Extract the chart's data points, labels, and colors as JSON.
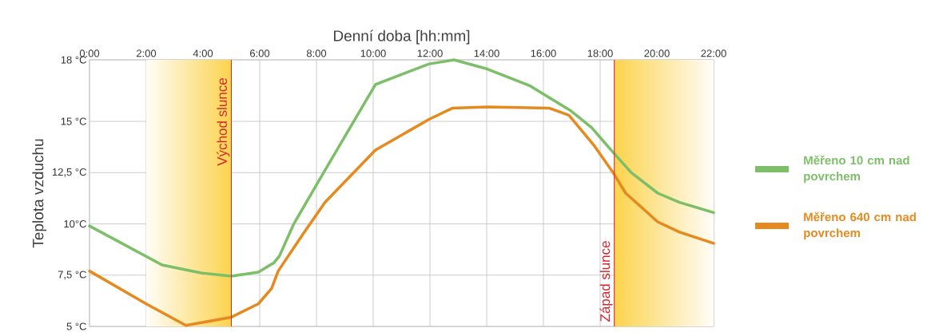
{
  "chart_data": {
    "type": "line",
    "xlabel": "Denní doba [hh:mm]",
    "ylabel": "Teplota vzduchu",
    "xlim": [
      0,
      22
    ],
    "ylim": [
      5,
      18
    ],
    "xticks": [
      {
        "value": 0,
        "label": "0:00"
      },
      {
        "value": 2,
        "label": "2:00"
      },
      {
        "value": 4,
        "label": "4:00"
      },
      {
        "value": 6,
        "label": "6:00"
      },
      {
        "value": 8,
        "label": "8:00"
      },
      {
        "value": 10,
        "label": "10:00"
      },
      {
        "value": 12,
        "label": "12:00"
      },
      {
        "value": 14,
        "label": "14:00"
      },
      {
        "value": 16,
        "label": "16:00"
      },
      {
        "value": 18,
        "label": "18:00"
      },
      {
        "value": 20,
        "label": "20:00"
      },
      {
        "value": 22,
        "label": "22:00"
      }
    ],
    "yticks": [
      {
        "value": 5,
        "label": "5 °C"
      },
      {
        "value": 7.5,
        "label": "7,5 °C"
      },
      {
        "value": 10,
        "label": "10°C"
      },
      {
        "value": 12.5,
        "label": "12,5 °C"
      },
      {
        "value": 15,
        "label": "15 °C"
      },
      {
        "value": 18,
        "label": "18 °C"
      }
    ],
    "grid": true,
    "legend": "right",
    "marker": "none",
    "line_style": "solid",
    "series": [
      {
        "name": "Měřeno 10 cm nad povrchem",
        "color": "#7dbf68",
        "x": [
          0,
          2.56,
          3.97,
          5.0,
          5.95,
          6.5,
          6.7,
          7.2,
          8.25,
          10.08,
          11.97,
          12.85,
          14.03,
          15.5,
          16.93,
          17.7,
          18.48,
          19.1,
          20.03,
          20.8,
          22.0
        ],
        "values": [
          9.9,
          8.0,
          7.6,
          7.45,
          7.65,
          8.1,
          8.45,
          10.0,
          12.5,
          16.8,
          17.8,
          18.0,
          17.55,
          16.75,
          15.55,
          14.7,
          13.45,
          12.5,
          11.5,
          11.05,
          10.55
        ]
      },
      {
        "name": "Měřeno 640 cm nad povrchem",
        "color": "#e58a1f",
        "x": [
          0,
          2.0,
          3.4,
          5.0,
          5.95,
          6.42,
          6.65,
          7.55,
          8.3,
          10.08,
          11.97,
          12.8,
          14.03,
          16.2,
          16.9,
          17.8,
          18.48,
          18.9,
          20.03,
          20.8,
          22.0
        ],
        "values": [
          7.7,
          6.1,
          5.05,
          5.45,
          6.1,
          6.85,
          7.7,
          9.55,
          11.05,
          13.6,
          15.1,
          15.65,
          15.7,
          15.65,
          15.3,
          13.8,
          12.45,
          11.5,
          10.1,
          9.6,
          9.05
        ]
      }
    ],
    "ref_lines": [
      {
        "axis": "x",
        "value": 5,
        "label": "Východ slunce",
        "color": "#d7262e"
      },
      {
        "axis": "x",
        "value": 18.5,
        "label": "Západ slunce",
        "color": "#d7262e"
      }
    ],
    "bands": [
      {
        "axis": "x",
        "from": 2,
        "to": 5,
        "color": "#fcd34d"
      },
      {
        "axis": "x",
        "from": 18.5,
        "to": 22,
        "color": "#fcd34d"
      }
    ]
  }
}
